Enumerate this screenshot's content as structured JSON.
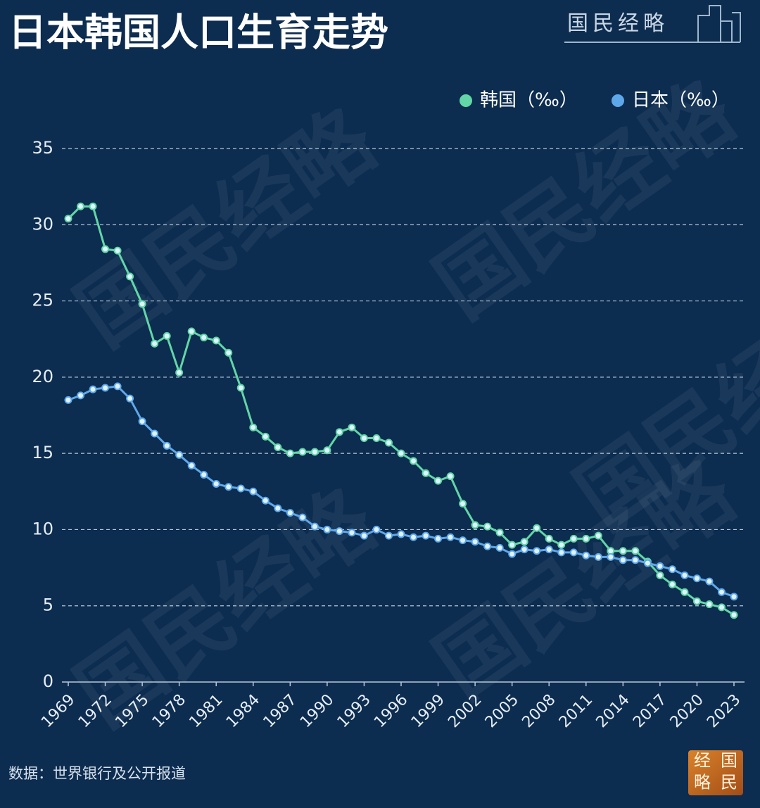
{
  "chart_data": {
    "type": "line",
    "title": "日本韩国人口生育走势",
    "brand": "国民经略",
    "badge": [
      "经",
      "国",
      "略",
      "民"
    ],
    "watermark": "国民经略",
    "source": "数据：世界银行及公开报道",
    "legend_position": "top-right",
    "grid": true,
    "x": [
      1969,
      1970,
      1971,
      1972,
      1973,
      1974,
      1975,
      1976,
      1977,
      1978,
      1979,
      1980,
      1981,
      1982,
      1983,
      1984,
      1985,
      1986,
      1987,
      1988,
      1989,
      1990,
      1991,
      1992,
      1993,
      1994,
      1995,
      1996,
      1997,
      1998,
      1999,
      2000,
      2001,
      2002,
      2003,
      2004,
      2005,
      2006,
      2007,
      2008,
      2009,
      2010,
      2011,
      2012,
      2013,
      2014,
      2015,
      2016,
      2017,
      2018,
      2019,
      2020,
      2021,
      2022,
      2023
    ],
    "xlim": [
      1969,
      2023
    ],
    "xticks": [
      1969,
      1972,
      1975,
      1978,
      1981,
      1984,
      1987,
      1990,
      1993,
      1996,
      1999,
      2002,
      2005,
      2008,
      2011,
      2014,
      2017,
      2020,
      2023
    ],
    "ylim": [
      0,
      35
    ],
    "yticks": [
      0,
      5,
      10,
      15,
      20,
      25,
      30,
      35
    ],
    "series": [
      {
        "name": "韩国（‰）",
        "color": "#62d6a6",
        "values": [
          30.4,
          31.2,
          31.2,
          28.4,
          28.3,
          26.6,
          24.8,
          22.2,
          22.7,
          20.3,
          23.0,
          22.6,
          22.4,
          21.6,
          19.3,
          16.7,
          16.1,
          15.4,
          15.0,
          15.1,
          15.1,
          15.2,
          16.4,
          16.7,
          16.0,
          16.0,
          15.7,
          15.0,
          14.5,
          13.7,
          13.2,
          13.5,
          11.7,
          10.3,
          10.2,
          9.8,
          9.0,
          9.2,
          10.1,
          9.4,
          9.0,
          9.4,
          9.4,
          9.6,
          8.6,
          8.6,
          8.6,
          7.9,
          7.0,
          6.4,
          5.9,
          5.3,
          5.1,
          4.9,
          4.4
        ]
      },
      {
        "name": "日本（‰）",
        "color": "#5ea8ea",
        "values": [
          18.5,
          18.8,
          19.2,
          19.3,
          19.4,
          18.6,
          17.1,
          16.3,
          15.5,
          14.9,
          14.2,
          13.6,
          13.0,
          12.8,
          12.7,
          12.5,
          11.9,
          11.4,
          11.1,
          10.8,
          10.2,
          10.0,
          9.9,
          9.8,
          9.6,
          10.0,
          9.6,
          9.7,
          9.5,
          9.6,
          9.4,
          9.5,
          9.3,
          9.2,
          8.9,
          8.8,
          8.4,
          8.7,
          8.6,
          8.7,
          8.5,
          8.5,
          8.3,
          8.2,
          8.2,
          8.0,
          8.0,
          7.8,
          7.6,
          7.4,
          7.0,
          6.8,
          6.6,
          5.9,
          5.6
        ]
      }
    ]
  }
}
